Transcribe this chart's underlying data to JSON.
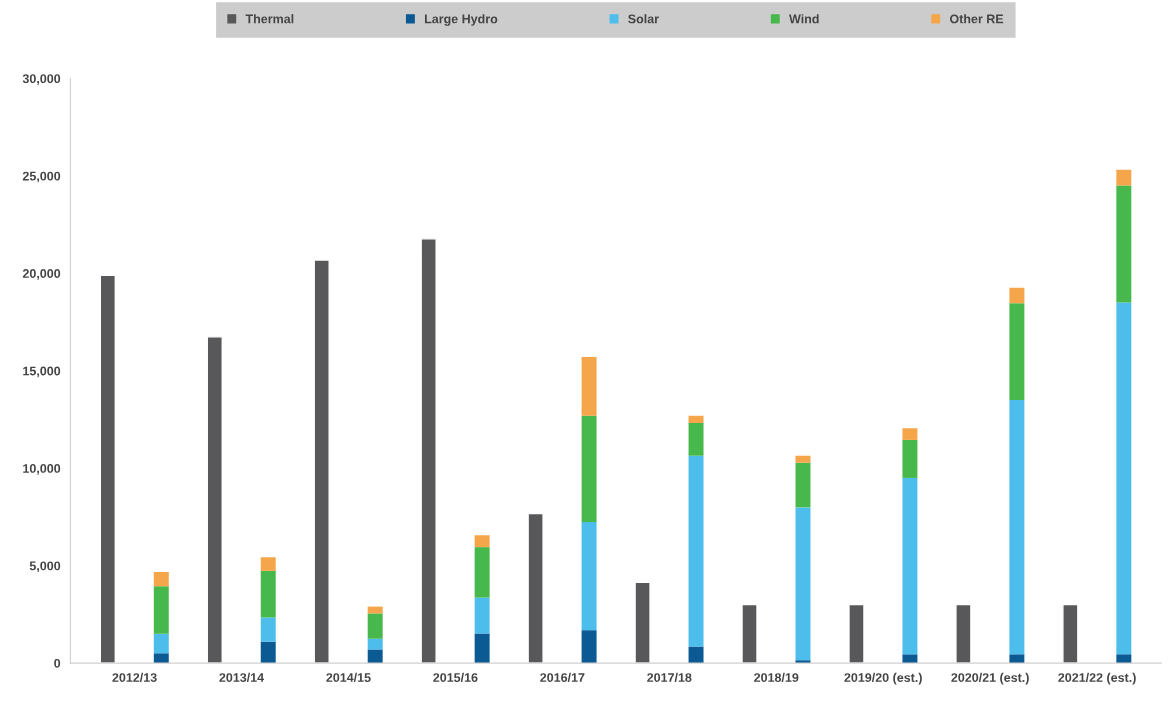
{
  "chart_data": {
    "type": "bar",
    "legend": "top",
    "grid": false,
    "categories": [
      "2012/13",
      "2013/14",
      "2014/15",
      "2015/16",
      "2016/17",
      "2017/18",
      "2018/19",
      "2019/20 (est.)",
      "2020/21 (est.)",
      "2021/22 (est.)"
    ],
    "ylim": [
      0,
      30000
    ],
    "yticks": [
      {
        "value": 0,
        "label": "0"
      },
      {
        "value": 5000,
        "label": "5,000"
      },
      {
        "value": 10000,
        "label": "10,000"
      },
      {
        "value": 15000,
        "label": "15,000"
      },
      {
        "value": 20000,
        "label": "20,000"
      },
      {
        "value": 25000,
        "label": "25,000"
      },
      {
        "value": 30000,
        "label": "30,000"
      }
    ],
    "series": [
      {
        "name": "Thermal",
        "color": "#58585a",
        "values": [
          19900,
          16740,
          20680,
          21770,
          7670,
          4150,
          3000,
          3000,
          3000,
          3000
        ]
      },
      {
        "name": "Large Hydro",
        "color": "#0b5a94",
        "base": [
          0,
          0,
          0,
          0,
          0,
          0,
          0,
          0,
          0,
          0
        ],
        "values": [
          500,
          1100,
          700,
          1520,
          1690,
          850,
          150,
          450,
          450,
          450
        ]
      },
      {
        "name": "Solar",
        "color": "#4dbdec",
        "base": [
          500,
          1100,
          700,
          1520,
          1690,
          850,
          150,
          450,
          450,
          450
        ],
        "values": [
          1000,
          1240,
          550,
          1840,
          5550,
          9790,
          7840,
          9050,
          13050,
          18050
        ]
      },
      {
        "name": "Wind",
        "color": "#47b84b",
        "base": [
          1500,
          2340,
          1250,
          3360,
          7240,
          10640,
          7990,
          9500,
          13500,
          18500
        ],
        "values": [
          2440,
          2390,
          1300,
          2590,
          5450,
          1680,
          2290,
          1950,
          4970,
          6010
        ]
      },
      {
        "name": "Other RE",
        "color": "#f5a54a",
        "base": [
          3940,
          4730,
          2550,
          5950,
          12690,
          12320,
          10280,
          11450,
          18470,
          24510
        ],
        "values": [
          740,
          700,
          350,
          610,
          3020,
          370,
          360,
          600,
          790,
          810
        ]
      }
    ]
  }
}
